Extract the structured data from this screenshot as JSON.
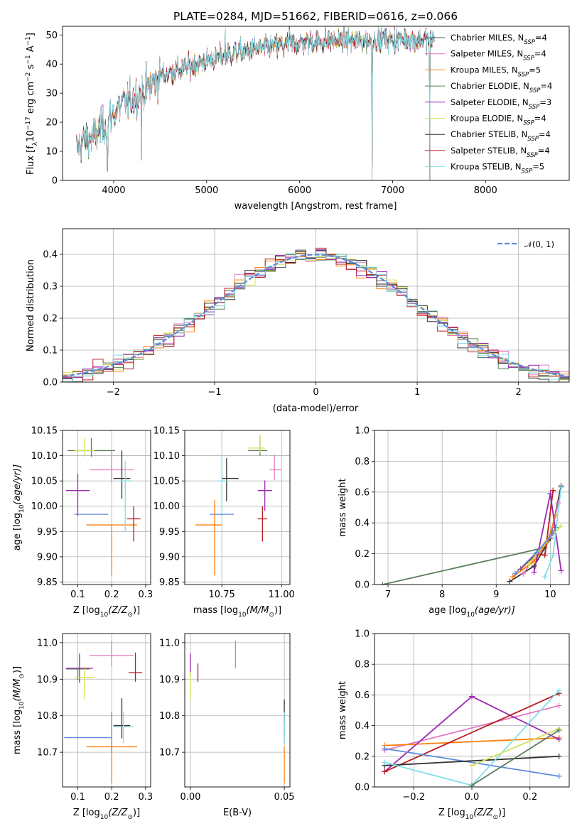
{
  "chart_data": [
    {
      "type": "line",
      "title": "PLATE=0284, MJD=51662, FIBERID=0616, z=0.066",
      "xlabel": "wavelength [Angstrom, rest frame]",
      "ylabel": "Flux [f",
      "ylabel_parts": [
        "Flux [f",
        "λ",
        "10",
        "−17",
        " erg cm",
        "−2",
        " s",
        "−1",
        " A",
        "−1",
        "]"
      ],
      "xlim": [
        3450,
        8900
      ],
      "ylim": [
        0,
        53
      ],
      "x_ticks": [
        4000,
        5000,
        6000,
        7000,
        8000
      ],
      "y_ticks": [
        0,
        10,
        20,
        30,
        40,
        50
      ],
      "grid": false,
      "legend_position": "upper-right",
      "series": [
        {
          "name": "Chabrier MILES, N",
          "sub": "SSP",
          "suffix": "=4",
          "color": "#555555"
        },
        {
          "name": "Salpeter MILES, N",
          "sub": "SSP",
          "suffix": "=4",
          "color": "#e377c2"
        },
        {
          "name": "Kroupa MILES, N",
          "sub": "SSP",
          "suffix": "=5",
          "color": "#ff7f0e"
        },
        {
          "name": "Chabrier ELODIE, N",
          "sub": "SSP",
          "suffix": "=4",
          "color": "#5a7d5a"
        },
        {
          "name": "Salpeter ELODIE, N",
          "sub": "SSP",
          "suffix": "=3",
          "color": "#9c27b0"
        },
        {
          "name": "Kroupa ELODIE, N",
          "sub": "SSP",
          "suffix": "=4",
          "color": "#d4e157"
        },
        {
          "name": "Chabrier STELIB, N",
          "sub": "SSP",
          "suffix": "=4",
          "color": "#333333"
        },
        {
          "name": "Salpeter STELIB, N",
          "sub": "SSP",
          "suffix": "=4",
          "color": "#b71c1c"
        },
        {
          "name": "Kroupa STELIB, N",
          "sub": "SSP",
          "suffix": "=5",
          "color": "#80deea"
        }
      ],
      "continuum": [
        [
          3600,
          11
        ],
        [
          3700,
          14
        ],
        [
          3800,
          15
        ],
        [
          3900,
          19
        ],
        [
          4000,
          23
        ],
        [
          4100,
          26
        ],
        [
          4200,
          28
        ],
        [
          4300,
          30
        ],
        [
          4400,
          33
        ],
        [
          4500,
          36
        ],
        [
          4700,
          38
        ],
        [
          4900,
          40
        ],
        [
          5100,
          42
        ],
        [
          5300,
          44
        ],
        [
          5500,
          45
        ],
        [
          5700,
          46
        ],
        [
          5900,
          47
        ],
        [
          6100,
          47.5
        ],
        [
          6300,
          48
        ],
        [
          6500,
          48
        ],
        [
          6700,
          48
        ],
        [
          6900,
          48.5
        ],
        [
          7100,
          48.5
        ],
        [
          7300,
          48.5
        ],
        [
          7500,
          48.5
        ]
      ],
      "features": [
        [
          3934,
          4
        ],
        [
          4300,
          8
        ],
        [
          5200,
          52
        ],
        [
          5890,
          52
        ],
        [
          6780,
          0
        ],
        [
          7400,
          0
        ]
      ]
    },
    {
      "type": "bar",
      "xlabel": "(data-model)/error",
      "ylabel": "Normed distribution",
      "xlim": [
        -2.5,
        2.5
      ],
      "ylim": [
        0,
        0.48
      ],
      "x_ticks": [
        -2,
        -1,
        0,
        1,
        2
      ],
      "y_ticks": [
        0.0,
        0.1,
        0.2,
        0.3,
        0.4
      ],
      "grid": true,
      "legend_position": "upper-right",
      "reference_curve": "N(0,1)",
      "legend_label": "𝒩(0, 1)",
      "bin_width": 0.1
    },
    {
      "type": "scatter",
      "xlabel": "Z [log",
      "xlabel_parts": [
        "Z [log",
        "10",
        "(Z/Z",
        "⊙",
        ")]"
      ],
      "ylabel": "age  [log",
      "ylabel_parts": [
        "age  [log",
        "10",
        "(age/yr)]"
      ],
      "xlim": [
        0.055,
        0.315
      ],
      "ylim": [
        9.845,
        10.15
      ],
      "x_ticks": [
        0.1,
        0.2,
        0.3
      ],
      "x_tick_labels": [
        "0.1",
        "0.2",
        "0.3"
      ],
      "y_ticks": [
        9.85,
        9.9,
        9.95,
        10.0,
        10.05,
        10.1,
        10.15
      ],
      "y_tick_labels": [
        "9.85",
        "9.90",
        "9.95",
        "10.00",
        "10.05",
        "10.10",
        "10.15"
      ],
      "grid": true,
      "points": [
        {
          "color": "#e377c2",
          "x": 0.2,
          "y": 10.072,
          "xerr": [
            0.065,
            0.065
          ],
          "yerr": [
            0.025,
            0.038
          ]
        },
        {
          "color": "#ff7f0e",
          "x": 0.2,
          "y": 9.963,
          "xerr": [
            0.075,
            0.075
          ],
          "yerr": [
            0.1,
            0.0
          ]
        },
        {
          "color": "#5a7d5a",
          "x": 0.14,
          "y": 10.11,
          "xerr": [
            0.07,
            0.07
          ],
          "yerr": [
            0.012,
            0.025
          ]
        },
        {
          "color": "#9c27b0",
          "x": 0.1,
          "y": 10.031,
          "xerr": [
            0.035,
            0.035
          ],
          "yerr": [
            0.05,
            0.033
          ]
        },
        {
          "color": "#d4e157",
          "x": 0.12,
          "y": 10.11,
          "xerr": [
            0.03,
            0.03
          ],
          "yerr": [
            0.012,
            0.025
          ]
        },
        {
          "color": "#333333",
          "x": 0.23,
          "y": 10.055,
          "xerr": [
            0.025,
            0.025
          ],
          "yerr": [
            0.04,
            0.055
          ]
        },
        {
          "color": "#b71c1c",
          "x": 0.265,
          "y": 9.975,
          "xerr": [
            0.02,
            0.02
          ],
          "yerr": [
            0.045,
            0.025
          ]
        },
        {
          "color": "#80deea",
          "x": 0.24,
          "y": 10.05,
          "xerr": [
            0.02,
            0.02
          ],
          "yerr": [
            0.1,
            0.04
          ]
        },
        {
          "color": "#5b8bd9",
          "x": 0.14,
          "y": 9.984,
          "xerr": [
            0.05,
            0.05
          ],
          "yerr": [
            0.0,
            0.0
          ]
        }
      ]
    },
    {
      "type": "scatter",
      "xlabel": "mass [log",
      "xlabel_parts": [
        "mass [log",
        "10",
        "(M/M",
        "⊙",
        ")]"
      ],
      "ylabel": "",
      "xlim": [
        10.595,
        11.035
      ],
      "ylim": [
        9.845,
        10.15
      ],
      "x_ticks": [
        10.75,
        11.0
      ],
      "x_tick_labels": [
        "10.75",
        "11.00"
      ],
      "y_ticks": [
        9.85,
        9.9,
        9.95,
        10.0,
        10.05,
        10.1,
        10.15
      ],
      "y_tick_labels": [
        "9.85",
        "9.90",
        "9.95",
        "10.00",
        "10.05",
        "10.10",
        "10.15"
      ],
      "grid": true,
      "points": [
        {
          "color": "#e377c2",
          "x": 10.97,
          "y": 10.072,
          "xerr": [
            0.02,
            0.03
          ],
          "yerr": [
            0.02,
            0.03
          ]
        },
        {
          "color": "#ff7f0e",
          "x": 10.72,
          "y": 9.963,
          "xerr": [
            0.08,
            0.03
          ],
          "yerr": [
            0.1,
            0.05
          ]
        },
        {
          "color": "#5a7d5a",
          "x": 10.91,
          "y": 10.11,
          "xerr": [
            0.05,
            0.03
          ],
          "yerr": [
            0.01,
            0.03
          ]
        },
        {
          "color": "#9c27b0",
          "x": 10.93,
          "y": 10.031,
          "xerr": [
            0.03,
            0.03
          ],
          "yerr": [
            0.04,
            0.02
          ]
        },
        {
          "color": "#d4e157",
          "x": 10.91,
          "y": 10.115,
          "xerr": [
            0.05,
            0.02
          ],
          "yerr": [
            0.01,
            0.025
          ]
        },
        {
          "color": "#333333",
          "x": 10.77,
          "y": 10.055,
          "xerr": [
            0.02,
            0.05
          ],
          "yerr": [
            0.045,
            0.04
          ]
        },
        {
          "color": "#b71c1c",
          "x": 10.92,
          "y": 9.975,
          "xerr": [
            0.02,
            0.02
          ],
          "yerr": [
            0.045,
            0.025
          ]
        },
        {
          "color": "#80deea",
          "x": 10.75,
          "y": 10.05,
          "xerr": [
            0.02,
            0.02
          ],
          "yerr": [
            0.07,
            0.05
          ]
        },
        {
          "color": "#5b8bd9",
          "x": 10.75,
          "y": 9.984,
          "xerr": [
            0.05,
            0.05
          ],
          "yerr": [
            0.0,
            0.0
          ]
        }
      ]
    },
    {
      "type": "line",
      "xlabel": "age  [log",
      "xlabel_parts": [
        "age  [log",
        "10",
        "(age/yr)]"
      ],
      "ylabel": "mass weight",
      "xlim": [
        6.75,
        10.35
      ],
      "ylim": [
        0,
        1.0
      ],
      "x_ticks": [
        7,
        8,
        9,
        10
      ],
      "x_tick_labels": [
        "7",
        "8",
        "9",
        "10"
      ],
      "y_ticks": [
        0,
        0.2,
        0.4,
        0.6,
        0.8,
        1.0
      ],
      "y_tick_labels": [
        "0.0",
        "0.2",
        "0.4",
        "0.6",
        "0.8",
        "1.0"
      ],
      "grid": true,
      "series": [
        {
          "color": "#5a7d5a",
          "x": [
            6.9,
            9.9,
            10.1
          ],
          "y": [
            0.0,
            0.24,
            0.37
          ]
        },
        {
          "color": "#333333",
          "x": [
            9.25,
            9.7,
            10.0,
            10.2
          ],
          "y": [
            0.02,
            0.12,
            0.3,
            0.64
          ]
        },
        {
          "color": "#b71c1c",
          "x": [
            9.45,
            9.75,
            9.9,
            10.05
          ],
          "y": [
            0.1,
            0.2,
            0.19,
            0.61
          ]
        },
        {
          "color": "#e377c2",
          "x": [
            9.5,
            9.8,
            10.0,
            10.15
          ],
          "y": [
            0.07,
            0.22,
            0.32,
            0.53
          ]
        },
        {
          "color": "#ff7f0e",
          "x": [
            9.3,
            9.7,
            9.95,
            10.1
          ],
          "y": [
            0.05,
            0.15,
            0.28,
            0.45
          ]
        },
        {
          "color": "#9c27b0",
          "x": [
            9.7,
            10.0,
            10.2
          ],
          "y": [
            0.08,
            0.59,
            0.09
          ]
        },
        {
          "color": "#d4e157",
          "x": [
            9.6,
            9.9,
            10.2
          ],
          "y": [
            0.13,
            0.27,
            0.38
          ]
        },
        {
          "color": "#80deea",
          "x": [
            9.9,
            10.05,
            10.2
          ],
          "y": [
            0.05,
            0.19,
            0.63
          ]
        },
        {
          "color": "#5b8bd9",
          "x": [
            9.35,
            9.75,
            10.05
          ],
          "y": [
            0.07,
            0.21,
            0.33
          ]
        }
      ]
    },
    {
      "type": "scatter",
      "xlabel": "Z [log",
      "xlabel_parts": [
        "Z [log",
        "10",
        "(Z/Z",
        "⊙",
        ")]"
      ],
      "ylabel": "mass [log",
      "ylabel_parts": [
        "mass [log",
        "10",
        "(M/M",
        "⊙",
        ")]"
      ],
      "xlim": [
        0.055,
        0.315
      ],
      "ylim": [
        10.605,
        11.025
      ],
      "x_ticks": [
        0.1,
        0.2,
        0.3
      ],
      "x_tick_labels": [
        "0.1",
        "0.2",
        "0.3"
      ],
      "y_ticks": [
        10.7,
        10.8,
        10.9,
        11.0
      ],
      "y_tick_labels": [
        "10.7",
        "10.8",
        "10.9",
        "11.0"
      ],
      "grid": true,
      "points": [
        {
          "color": "#e377c2",
          "x": 0.2,
          "y": 10.965,
          "xerr": [
            0.065,
            0.065
          ],
          "yerr": [
            0.03,
            0.04
          ]
        },
        {
          "color": "#ff7f0e",
          "x": 0.2,
          "y": 10.715,
          "xerr": [
            0.075,
            0.075
          ],
          "yerr": [
            0.1,
            0.0
          ]
        },
        {
          "color": "#5a7d5a",
          "x": 0.1,
          "y": 10.928,
          "xerr": [
            0.035,
            0.035
          ],
          "yerr": [
            0.03,
            0.0
          ]
        },
        {
          "color": "#9c27b0",
          "x": 0.105,
          "y": 10.93,
          "xerr": [
            0.04,
            0.04
          ],
          "yerr": [
            0.04,
            0.04
          ]
        },
        {
          "color": "#d4e157",
          "x": 0.12,
          "y": 10.905,
          "xerr": [
            0.03,
            0.03
          ],
          "yerr": [
            0.06,
            0.03
          ]
        },
        {
          "color": "#333333",
          "x": 0.23,
          "y": 10.773,
          "xerr": [
            0.025,
            0.025
          ],
          "yerr": [
            0.035,
            0.075
          ]
        },
        {
          "color": "#b71c1c",
          "x": 0.27,
          "y": 10.918,
          "xerr": [
            0.02,
            0.02
          ],
          "yerr": [
            0.025,
            0.055
          ]
        },
        {
          "color": "#80deea",
          "x": 0.235,
          "y": 10.77,
          "xerr": [
            0.03,
            0.03
          ],
          "yerr": [
            0.045,
            0.04
          ]
        },
        {
          "color": "#5b8bd9",
          "x": 0.2,
          "y": 10.74,
          "xerr": [
            0.14,
            0.0
          ],
          "yerr": [
            0.04,
            0.07
          ]
        }
      ]
    },
    {
      "type": "scatter",
      "xlabel": "E(B-V)",
      "ylabel": "",
      "xlim": [
        -0.003,
        0.053
      ],
      "ylim": [
        10.605,
        11.025
      ],
      "x_ticks": [
        0.0,
        0.05
      ],
      "x_tick_labels": [
        "0.00",
        "0.05"
      ],
      "y_ticks": [
        10.7,
        10.8,
        10.9,
        11.0
      ],
      "y_tick_labels": [
        "10.7",
        "10.8",
        "10.9",
        "11.0"
      ],
      "grid": true,
      "points": [
        {
          "color": "#e377c2",
          "x": 0.024,
          "y": 10.965,
          "yerr": [
            0.035,
            0.04
          ]
        },
        {
          "color": "#ff7f0e",
          "x": 0.05,
          "y": 10.715,
          "yerr": [
            0.1,
            0.0
          ]
        },
        {
          "color": "#5a7d5a",
          "x": 0.05,
          "y": 10.77,
          "yerr": [
            0.045,
            0.03
          ]
        },
        {
          "color": "#9c27b0",
          "x": 0.0,
          "y": 10.93,
          "yerr": [
            0.02,
            0.04
          ]
        },
        {
          "color": "#d4e157",
          "x": 0.0,
          "y": 10.89,
          "yerr": [
            0.045,
            0.03
          ]
        },
        {
          "color": "#333333",
          "x": 0.05,
          "y": 10.81,
          "yerr": [
            0.025,
            0.035
          ]
        },
        {
          "color": "#b71c1c",
          "x": 0.004,
          "y": 10.918,
          "yerr": [
            0.025,
            0.025
          ]
        },
        {
          "color": "#80deea",
          "x": 0.05,
          "y": 10.77,
          "yerr": [
            0.045,
            0.04
          ]
        },
        {
          "color": "#5b8bd9",
          "x": 0.05,
          "y": 10.77,
          "yerr": [
            0.0,
            0.0
          ]
        }
      ]
    },
    {
      "type": "line",
      "xlabel": "Z [log",
      "xlabel_parts": [
        "Z [log",
        "10",
        "(Z/Z",
        "⊙",
        ")]"
      ],
      "ylabel": "mass weight",
      "xlim": [
        -0.335,
        0.335
      ],
      "ylim": [
        0,
        1.0
      ],
      "x_ticks": [
        -0.2,
        0.0,
        0.2
      ],
      "x_tick_labels": [
        "−0.2",
        "0.0",
        "0.2"
      ],
      "y_ticks": [
        0,
        0.2,
        0.4,
        0.6,
        0.8,
        1.0
      ],
      "y_tick_labels": [
        "0.0",
        "0.2",
        "0.4",
        "0.6",
        "0.8",
        "1.0"
      ],
      "grid": true,
      "series": [
        {
          "color": "#e377c2",
          "x": [
            -0.3,
            0.3
          ],
          "y": [
            0.24,
            0.53
          ]
        },
        {
          "color": "#ff7f0e",
          "x": [
            -0.3,
            0.3
          ],
          "y": [
            0.27,
            0.32
          ]
        },
        {
          "color": "#9c27b0",
          "x": [
            -0.3,
            0.0,
            0.3
          ],
          "y": [
            0.1,
            0.59,
            0.31
          ]
        },
        {
          "color": "#b71c1c",
          "x": [
            -0.3,
            0.3
          ],
          "y": [
            0.1,
            0.61
          ]
        },
        {
          "color": "#5b8bd9",
          "x": [
            -0.3,
            0.3
          ],
          "y": [
            0.25,
            0.07
          ]
        },
        {
          "color": "#333333",
          "x": [
            -0.3,
            0.3
          ],
          "y": [
            0.14,
            0.2
          ]
        },
        {
          "color": "#80deea",
          "x": [
            -0.3,
            0.0,
            0.3
          ],
          "y": [
            0.16,
            0.01,
            0.63
          ]
        },
        {
          "color": "#d4e157",
          "x": [
            0.0,
            0.3
          ],
          "y": [
            0.14,
            0.38
          ]
        },
        {
          "color": "#5a7d5a",
          "x": [
            0.0,
            0.3
          ],
          "y": [
            0.01,
            0.37
          ]
        }
      ]
    }
  ]
}
